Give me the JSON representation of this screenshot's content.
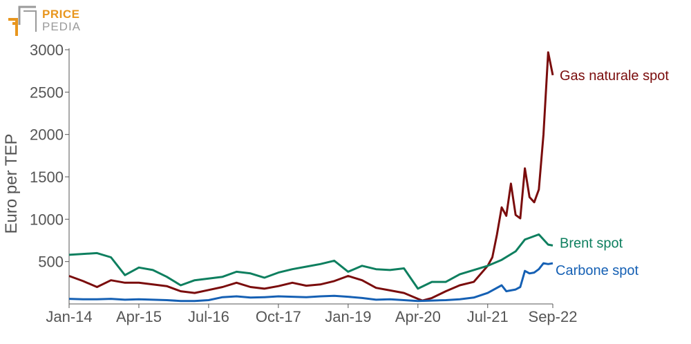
{
  "logo": {
    "line1": "PRICE",
    "line2": "PEDIA",
    "accent": "#E8961E",
    "gray": "#9A9A9A"
  },
  "chart_data": {
    "type": "line",
    "title": "",
    "xlabel": "",
    "ylabel": "Euro per TEP",
    "ylim": [
      0,
      3000
    ],
    "yticks": [
      500,
      1000,
      1500,
      2000,
      2500,
      3000
    ],
    "xlim": [
      "Jan-14",
      "Sep-22"
    ],
    "xticks": [
      "Jan-14",
      "Apr-15",
      "Jul-16",
      "Oct-17",
      "Jan-19",
      "Apr-20",
      "Jul-21",
      "Sep-22"
    ],
    "grid": false,
    "series": [
      {
        "name": "Gas naturale spot",
        "color": "#7A0C0C",
        "points": [
          [
            "Jan-14",
            330
          ],
          [
            "Apr-14",
            270
          ],
          [
            "Jul-14",
            200
          ],
          [
            "Oct-14",
            280
          ],
          [
            "Jan-15",
            250
          ],
          [
            "Apr-15",
            250
          ],
          [
            "Jul-15",
            230
          ],
          [
            "Oct-15",
            210
          ],
          [
            "Jan-16",
            150
          ],
          [
            "Apr-16",
            130
          ],
          [
            "Jul-16",
            165
          ],
          [
            "Oct-16",
            200
          ],
          [
            "Jan-17",
            250
          ],
          [
            "Apr-17",
            200
          ],
          [
            "Jul-17",
            180
          ],
          [
            "Oct-17",
            210
          ],
          [
            "Jan-18",
            250
          ],
          [
            "Apr-18",
            215
          ],
          [
            "Jul-18",
            230
          ],
          [
            "Oct-18",
            270
          ],
          [
            "Jan-19",
            330
          ],
          [
            "Apr-19",
            280
          ],
          [
            "Jul-19",
            190
          ],
          [
            "Oct-19",
            160
          ],
          [
            "Jan-20",
            130
          ],
          [
            "Apr-20",
            60
          ],
          [
            "May-20",
            40
          ],
          [
            "Jul-20",
            70
          ],
          [
            "Oct-20",
            150
          ],
          [
            "Jan-21",
            220
          ],
          [
            "Apr-21",
            260
          ],
          [
            "Jul-21",
            450
          ],
          [
            "Aug-21",
            550
          ],
          [
            "Sep-21",
            820
          ],
          [
            "Oct-21",
            1140
          ],
          [
            "Nov-21",
            1040
          ],
          [
            "Dec-21",
            1420
          ],
          [
            "Jan-22",
            1050
          ],
          [
            "Feb-22",
            1010
          ],
          [
            "Mar-22",
            1600
          ],
          [
            "Apr-22",
            1260
          ],
          [
            "May-22",
            1200
          ],
          [
            "Jun-22",
            1350
          ],
          [
            "Jul-22",
            2000
          ],
          [
            "Aug-22",
            2970
          ],
          [
            "Sep-22",
            2700
          ]
        ]
      },
      {
        "name": "Brent spot",
        "color": "#0E7F5F",
        "points": [
          [
            "Jan-14",
            580
          ],
          [
            "Apr-14",
            590
          ],
          [
            "Jul-14",
            600
          ],
          [
            "Oct-14",
            550
          ],
          [
            "Jan-15",
            340
          ],
          [
            "Apr-15",
            430
          ],
          [
            "Jul-15",
            400
          ],
          [
            "Oct-15",
            320
          ],
          [
            "Jan-16",
            220
          ],
          [
            "Apr-16",
            280
          ],
          [
            "Jul-16",
            300
          ],
          [
            "Oct-16",
            320
          ],
          [
            "Jan-17",
            380
          ],
          [
            "Apr-17",
            360
          ],
          [
            "Jul-17",
            310
          ],
          [
            "Oct-17",
            370
          ],
          [
            "Jan-18",
            410
          ],
          [
            "Apr-18",
            440
          ],
          [
            "Jul-18",
            470
          ],
          [
            "Oct-18",
            510
          ],
          [
            "Jan-19",
            380
          ],
          [
            "Apr-19",
            450
          ],
          [
            "Jul-19",
            410
          ],
          [
            "Oct-19",
            400
          ],
          [
            "Jan-20",
            420
          ],
          [
            "Apr-20",
            180
          ],
          [
            "Jul-20",
            260
          ],
          [
            "Oct-20",
            260
          ],
          [
            "Jan-21",
            350
          ],
          [
            "Apr-21",
            400
          ],
          [
            "Jul-21",
            450
          ],
          [
            "Oct-21",
            520
          ],
          [
            "Jan-22",
            620
          ],
          [
            "Mar-22",
            760
          ],
          [
            "Jun-22",
            820
          ],
          [
            "Aug-22",
            700
          ],
          [
            "Sep-22",
            690
          ]
        ]
      },
      {
        "name": "Carbone spot",
        "color": "#1560B4",
        "points": [
          [
            "Jan-14",
            60
          ],
          [
            "Apr-14",
            55
          ],
          [
            "Jul-14",
            55
          ],
          [
            "Oct-14",
            60
          ],
          [
            "Jan-15",
            50
          ],
          [
            "Apr-15",
            55
          ],
          [
            "Jul-15",
            50
          ],
          [
            "Oct-15",
            45
          ],
          [
            "Jan-16",
            35
          ],
          [
            "Apr-16",
            35
          ],
          [
            "Jul-16",
            45
          ],
          [
            "Oct-16",
            80
          ],
          [
            "Jan-17",
            90
          ],
          [
            "Apr-17",
            75
          ],
          [
            "Jul-17",
            80
          ],
          [
            "Oct-17",
            90
          ],
          [
            "Jan-18",
            85
          ],
          [
            "Apr-18",
            80
          ],
          [
            "Jul-18",
            90
          ],
          [
            "Oct-18",
            95
          ],
          [
            "Jan-19",
            85
          ],
          [
            "Apr-19",
            70
          ],
          [
            "Jul-19",
            50
          ],
          [
            "Oct-19",
            55
          ],
          [
            "Jan-20",
            45
          ],
          [
            "Apr-20",
            35
          ],
          [
            "Jul-20",
            40
          ],
          [
            "Oct-20",
            45
          ],
          [
            "Jan-21",
            55
          ],
          [
            "Apr-21",
            75
          ],
          [
            "Jul-21",
            130
          ],
          [
            "Oct-21",
            220
          ],
          [
            "Nov-21",
            150
          ],
          [
            "Dec-21",
            160
          ],
          [
            "Jan-22",
            170
          ],
          [
            "Feb-22",
            200
          ],
          [
            "Mar-22",
            390
          ],
          [
            "Apr-22",
            360
          ],
          [
            "May-22",
            370
          ],
          [
            "Jun-22",
            410
          ],
          [
            "Jul-22",
            480
          ],
          [
            "Aug-22",
            470
          ],
          [
            "Sep-22",
            480
          ]
        ]
      }
    ]
  }
}
